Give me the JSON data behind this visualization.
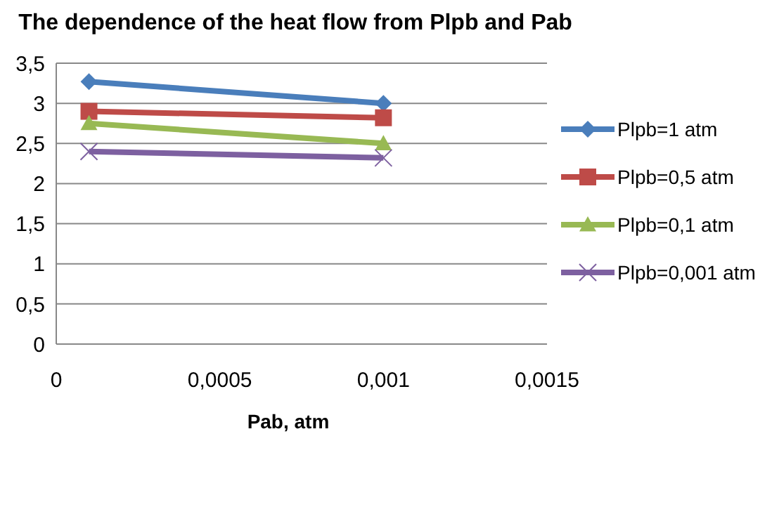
{
  "chart_data": {
    "type": "line",
    "title": "The dependence of the heat flow from Plpb and Pab",
    "xlabel": "Pab, atm",
    "x": [
      0.0001,
      0.001
    ],
    "xlim": [
      0,
      0.0015
    ],
    "xticks": [
      0,
      {
        "value": 0.0005,
        "label": "0,0005"
      },
      {
        "value": 0.001,
        "label": "0,001"
      },
      {
        "value": 0.0015,
        "label": "0,0015"
      }
    ],
    "ylim": [
      0,
      3.5
    ],
    "yticks": [
      0,
      {
        "value": 0.5,
        "label": "0,5"
      },
      1,
      {
        "value": 1.5,
        "label": "1,5"
      },
      2,
      {
        "value": 2.5,
        "label": "2,5"
      },
      3,
      {
        "value": 3.5,
        "label": "3,5"
      }
    ],
    "grid": "y",
    "legend": "right",
    "line_style": "solid",
    "series": [
      {
        "name": "Plpb=1 atm",
        "color": "#4a7ebb",
        "marker": "diamond",
        "values": [
          3.27,
          3.0
        ]
      },
      {
        "name": "Plpb=0,5 atm",
        "color": "#be4b48",
        "marker": "square",
        "values": [
          2.9,
          2.82
        ]
      },
      {
        "name": "Plpb=0,1 atm",
        "color": "#98b954",
        "marker": "triangle",
        "values": [
          2.75,
          2.5
        ]
      },
      {
        "name": "Plpb=0,001 atm",
        "color": "#7d60a0",
        "marker": "cross",
        "values": [
          2.4,
          2.32
        ]
      }
    ]
  }
}
